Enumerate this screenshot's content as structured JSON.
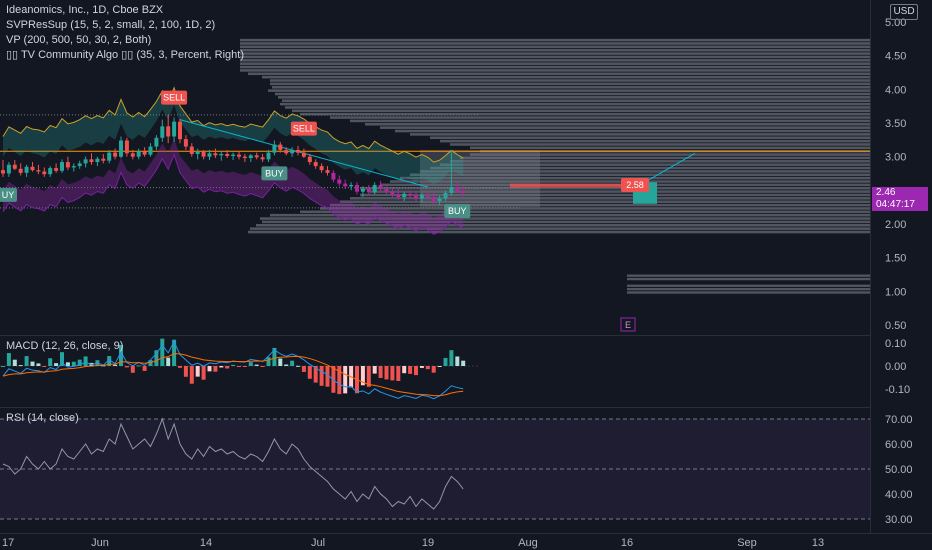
{
  "legend": {
    "symbol": "Ideanomics, Inc., 1D, Cboe BZX",
    "ind1": "SVPResSup (15, 5, 2, small, 2, 100, 1D, 2)",
    "ind2": "VP (200, 500, 50, 30, 2, Both)",
    "ind3": "▯▯ TV Community Algo ▯▯ (35, 3, Percent, Right)",
    "macd": "MACD (12, 26, close, 9)",
    "rsi": "RSI (14, close)"
  },
  "currency": "USD",
  "last_price": {
    "value": "2.46",
    "countdown": "04:47:17"
  },
  "target_label": "2.58",
  "event_marker": "E",
  "signals": [
    {
      "text": "SELL",
      "type": "sell",
      "index": 29
    },
    {
      "text": "SELL",
      "type": "sell",
      "index": 51
    },
    {
      "text": "BUY",
      "type": "buy",
      "index": 46
    },
    {
      "text": "BUY",
      "type": "buy",
      "index": 77
    },
    {
      "text": "UY",
      "type": "buy",
      "index": 0
    }
  ],
  "colors": {
    "bull": "#26a69a",
    "bear": "#ef5350",
    "purple": "#9c27b0",
    "orange": "#ff9800",
    "cyan": "#00bcd4",
    "macd_line": "#2196f3",
    "signal_line": "#ff6d00",
    "bg": "#131722"
  },
  "chart_data": [
    {
      "type": "candlestick",
      "name": "price",
      "y_ticks": [
        "5.00",
        "4.50",
        "4.00",
        "3.50",
        "3.00",
        "2.50",
        "2.00",
        "1.50",
        "1.00",
        "0.50"
      ],
      "ylim": [
        0.45,
        5.1
      ],
      "x_ticks": [
        "17",
        "Jun",
        "14",
        "Jul",
        "19",
        "Aug",
        "16",
        "Sep",
        "13"
      ],
      "horizontal_line": 3.08,
      "ohlc": [
        [
          2.8,
          2.95,
          2.7,
          2.75
        ],
        [
          2.75,
          2.92,
          2.7,
          2.88
        ],
        [
          2.88,
          2.95,
          2.8,
          2.82
        ],
        [
          2.82,
          2.9,
          2.72,
          2.76
        ],
        [
          2.76,
          2.88,
          2.7,
          2.85
        ],
        [
          2.85,
          2.92,
          2.78,
          2.8
        ],
        [
          2.8,
          2.88,
          2.74,
          2.78
        ],
        [
          2.78,
          2.84,
          2.7,
          2.74
        ],
        [
          2.74,
          2.86,
          2.7,
          2.83
        ],
        [
          2.83,
          2.9,
          2.76,
          2.79
        ],
        [
          2.79,
          2.96,
          2.76,
          2.92
        ],
        [
          2.92,
          3.0,
          2.8,
          2.84
        ],
        [
          2.84,
          2.9,
          2.78,
          2.86
        ],
        [
          2.86,
          2.94,
          2.82,
          2.9
        ],
        [
          2.9,
          3.0,
          2.84,
          2.96
        ],
        [
          2.96,
          3.05,
          2.88,
          2.92
        ],
        [
          2.92,
          3.0,
          2.86,
          2.97
        ],
        [
          2.97,
          3.04,
          2.9,
          2.94
        ],
        [
          2.94,
          3.1,
          2.9,
          3.06
        ],
        [
          3.06,
          3.12,
          2.96,
          3.0
        ],
        [
          3.0,
          3.3,
          2.98,
          3.24
        ],
        [
          3.24,
          3.28,
          3.0,
          3.05
        ],
        [
          3.05,
          3.1,
          2.96,
          3.0
        ],
        [
          3.0,
          3.12,
          2.96,
          3.08
        ],
        [
          3.08,
          3.14,
          3.0,
          3.03
        ],
        [
          3.03,
          3.2,
          3.0,
          3.15
        ],
        [
          3.15,
          3.32,
          3.1,
          3.28
        ],
        [
          3.28,
          3.55,
          3.22,
          3.45
        ],
        [
          3.45,
          3.62,
          3.2,
          3.3
        ],
        [
          3.3,
          3.58,
          3.22,
          3.52
        ],
        [
          3.52,
          3.56,
          3.2,
          3.26
        ],
        [
          3.26,
          3.32,
          3.1,
          3.15
        ],
        [
          3.15,
          3.2,
          3.0,
          3.04
        ],
        [
          3.04,
          3.12,
          2.96,
          3.07
        ],
        [
          3.07,
          3.1,
          2.96,
          3.0
        ],
        [
          3.0,
          3.1,
          2.95,
          3.05
        ],
        [
          3.05,
          3.12,
          2.98,
          3.02
        ],
        [
          3.02,
          3.08,
          2.94,
          3.04
        ],
        [
          3.04,
          3.1,
          2.98,
          3.01
        ],
        [
          3.01,
          3.06,
          2.95,
          3.03
        ],
        [
          3.03,
          3.08,
          2.96,
          3.0
        ],
        [
          3.0,
          3.04,
          2.92,
          2.98
        ],
        [
          2.98,
          3.04,
          2.92,
          3.02
        ],
        [
          3.02,
          3.06,
          2.96,
          2.99
        ],
        [
          2.99,
          3.04,
          2.92,
          2.96
        ],
        [
          2.96,
          3.1,
          2.92,
          3.06
        ],
        [
          3.06,
          3.24,
          3.02,
          3.18
        ],
        [
          3.18,
          3.22,
          3.06,
          3.1
        ],
        [
          3.1,
          3.14,
          3.02,
          3.05
        ],
        [
          3.05,
          3.14,
          3.0,
          3.1
        ],
        [
          3.1,
          3.16,
          3.02,
          3.06
        ],
        [
          3.06,
          3.12,
          2.98,
          3.0
        ],
        [
          3.0,
          3.04,
          2.88,
          2.92
        ],
        [
          2.92,
          2.96,
          2.82,
          2.86
        ],
        [
          2.86,
          2.9,
          2.76,
          2.8
        ],
        [
          2.8,
          2.86,
          2.72,
          2.76
        ],
        [
          2.76,
          2.8,
          2.62,
          2.66
        ],
        [
          2.66,
          2.72,
          2.56,
          2.6
        ],
        [
          2.6,
          2.66,
          2.52,
          2.56
        ],
        [
          2.56,
          2.62,
          2.5,
          2.58
        ],
        [
          2.58,
          2.62,
          2.44,
          2.48
        ],
        [
          2.48,
          2.56,
          2.4,
          2.52
        ],
        [
          2.52,
          2.58,
          2.44,
          2.47
        ],
        [
          2.47,
          2.62,
          2.44,
          2.58
        ],
        [
          2.58,
          2.64,
          2.48,
          2.52
        ],
        [
          2.52,
          2.56,
          2.44,
          2.48
        ],
        [
          2.48,
          2.54,
          2.4,
          2.44
        ],
        [
          2.44,
          2.52,
          2.36,
          2.4
        ],
        [
          2.4,
          2.48,
          2.34,
          2.45
        ],
        [
          2.45,
          2.5,
          2.38,
          2.42
        ],
        [
          2.42,
          2.48,
          2.34,
          2.38
        ],
        [
          2.38,
          2.46,
          2.32,
          2.43
        ],
        [
          2.43,
          2.48,
          2.36,
          2.4
        ],
        [
          2.4,
          2.46,
          2.3,
          2.34
        ],
        [
          2.34,
          2.42,
          2.28,
          2.38
        ],
        [
          2.38,
          2.5,
          2.34,
          2.46
        ],
        [
          2.46,
          3.1,
          2.42,
          2.55
        ],
        [
          2.55,
          2.62,
          2.46,
          2.5
        ],
        [
          2.5,
          2.56,
          2.4,
          2.46
        ]
      ]
    },
    {
      "type": "bar",
      "name": "MACD (12, 26, close, 9)",
      "y_ticks": [
        "0.10",
        "0.00",
        "-0.10"
      ],
      "ylim": [
        -0.16,
        0.13
      ]
    },
    {
      "type": "line",
      "name": "RSI (14, close)",
      "y_ticks": [
        "70.00",
        "60.00",
        "50.00",
        "40.00",
        "30.00"
      ],
      "ylim": [
        24,
        74
      ],
      "levels": [
        70,
        50,
        30
      ],
      "values": [
        52,
        51,
        48,
        50,
        55,
        52,
        50,
        53,
        50,
        52,
        58,
        55,
        54,
        57,
        60,
        56,
        58,
        57,
        62,
        60,
        68,
        63,
        58,
        60,
        62,
        59,
        64,
        70,
        62,
        68,
        60,
        56,
        54,
        58,
        55,
        59,
        57,
        58,
        56,
        57,
        55,
        54,
        56,
        55,
        53,
        57,
        62,
        58,
        56,
        60,
        58,
        54,
        51,
        49,
        47,
        45,
        42,
        40,
        38,
        41,
        37,
        40,
        38,
        43,
        40,
        38,
        35,
        37,
        36,
        39,
        35,
        38,
        36,
        34,
        37,
        43,
        47,
        45,
        42
      ]
    }
  ]
}
